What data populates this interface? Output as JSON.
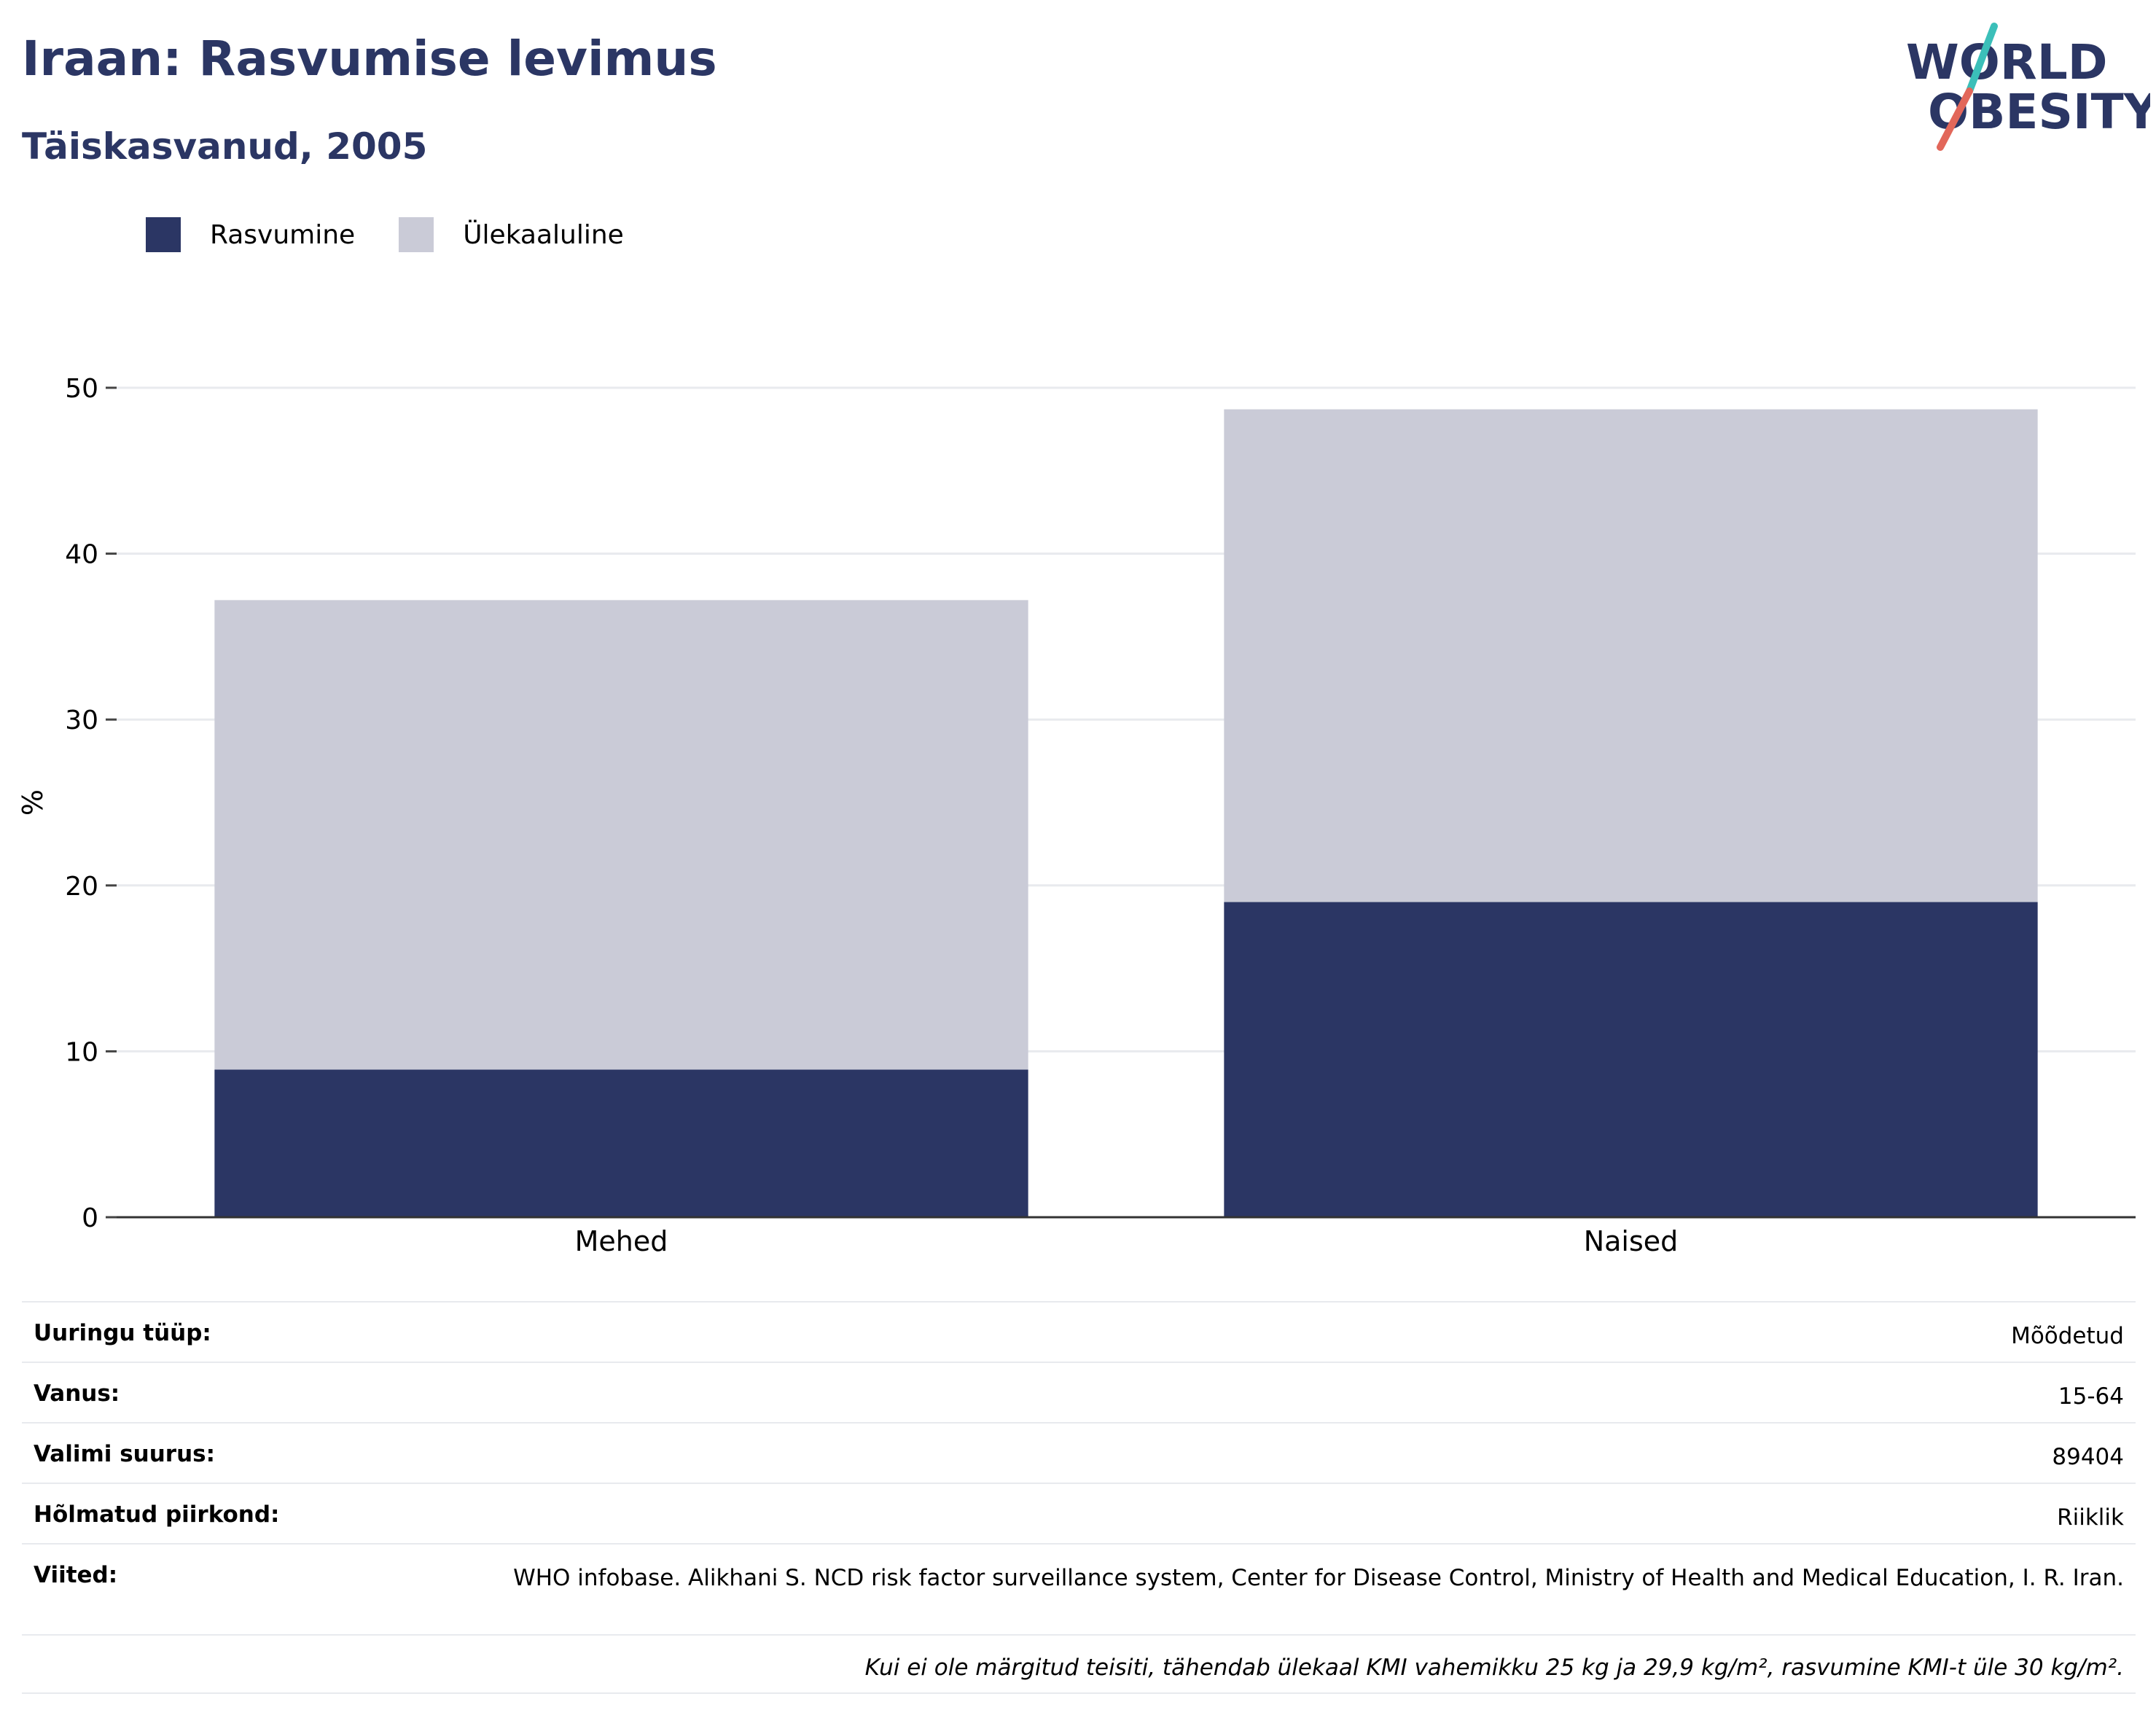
{
  "header": {
    "title": "Iraan: Rasvumise levimus",
    "subtitle": "Täiskasvanud, 2005"
  },
  "logo": {
    "line1": "WORLD",
    "line2": "OBESITY",
    "colors": {
      "text": "#2b3664",
      "slash_top": "#3bbfb9",
      "slash_bottom": "#e2675a"
    }
  },
  "colors": {
    "obesity": "#2b3664",
    "overweight": "#cacbd7",
    "gridline": "#e8eaee",
    "axis": "#333333",
    "title": "#2b3664"
  },
  "chart_data": {
    "type": "bar",
    "stacked": true,
    "categories": [
      "Mehed",
      "Naised"
    ],
    "series": [
      {
        "name": "Rasvumine",
        "values": [
          8.9,
          19.0
        ]
      },
      {
        "name": "Ülekaaluline",
        "values": [
          28.3,
          29.7
        ]
      }
    ],
    "ylabel": "%",
    "ylim": [
      0,
      50
    ],
    "yticks": [
      0,
      10,
      20,
      30,
      40,
      50
    ],
    "grid": true,
    "legend_position": "top-left"
  },
  "meta": {
    "rows": [
      {
        "label": "Uuringu tüüp:",
        "value": "Mõõdetud"
      },
      {
        "label": "Vanus:",
        "value": "15-64"
      },
      {
        "label": "Valimi suurus:",
        "value": "89404"
      },
      {
        "label": "Hõlmatud piirkond:",
        "value": "Riiklik"
      },
      {
        "label": "Viited:",
        "value": "WHO infobase. Alikhani S. NCD risk factor surveillance system, Center for Disease Control, Ministry of Health and Medical Education, I. R. Iran."
      }
    ],
    "note": "Kui ei ole märgitud teisiti, tähendab ülekaal KMI vahemikku 25 kg ja 29,9 kg/m², rasvumine KMI-t üle 30 kg/m²."
  }
}
